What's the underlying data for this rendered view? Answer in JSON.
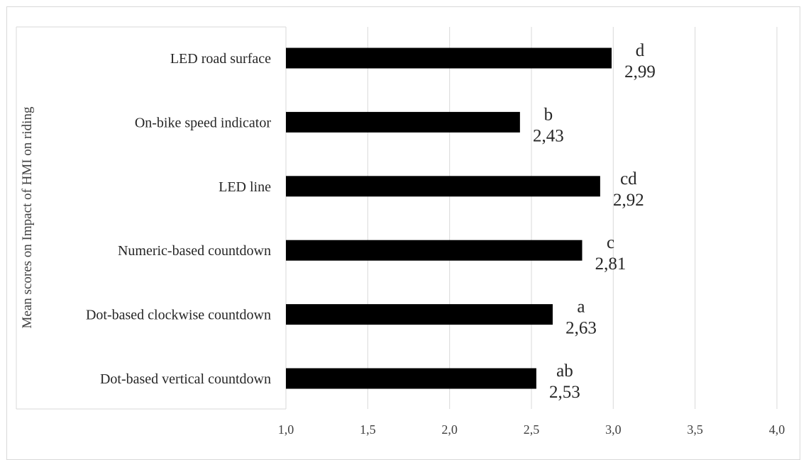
{
  "chart_data": {
    "type": "bar",
    "orientation": "horizontal",
    "categories": [
      "LED road surface",
      "On-bike speed indicator",
      "LED line",
      "Numeric-based countdown",
      "Dot-based clockwise countdown",
      "Dot-based vertical countdown"
    ],
    "values": [
      2.99,
      2.43,
      2.92,
      2.81,
      2.63,
      2.53
    ],
    "value_labels": [
      "2,99",
      "2,43",
      "2,92",
      "2,81",
      "2,63",
      "2,53"
    ],
    "group_letters": [
      "d",
      "b",
      "cd",
      "c",
      "a",
      "ab"
    ],
    "xlim": [
      1.0,
      4.0
    ],
    "xticks": [
      1.0,
      1.5,
      2.0,
      2.5,
      3.0,
      3.5,
      4.0
    ],
    "xtick_labels": [
      "1,0",
      "1,5",
      "2,0",
      "2,5",
      "3,0",
      "3,5",
      "4,0"
    ],
    "ylabel": "Mean scores on Impact of HMI on riding",
    "title": "",
    "xlabel": "",
    "grid": "vertical",
    "bar_color": "#000000",
    "grid_color": "#d9d9d9"
  }
}
